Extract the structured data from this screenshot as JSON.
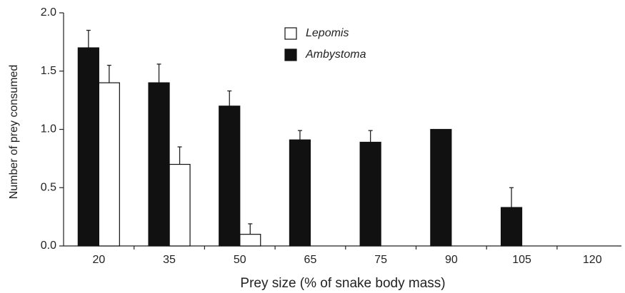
{
  "chart_data": {
    "type": "bar",
    "x_label": "Prey size (% of snake body mass)",
    "y_label": "Number of prey consumed",
    "categories": [
      "20",
      "35",
      "50",
      "65",
      "75",
      "90",
      "105",
      "120"
    ],
    "series": [
      {
        "name": "Lepomis",
        "color": "#ffffff",
        "values": [
          1.4,
          0.7,
          0.1,
          null,
          null,
          null,
          null,
          null
        ],
        "errors": [
          0.15,
          0.15,
          0.09,
          null,
          null,
          null,
          null,
          null
        ]
      },
      {
        "name": "Ambystoma",
        "color": "#111111",
        "values": [
          1.7,
          1.4,
          1.2,
          0.91,
          0.89,
          1.0,
          0.33,
          null
        ],
        "errors": [
          0.15,
          0.16,
          0.13,
          0.08,
          0.1,
          null,
          0.17,
          null
        ]
      }
    ],
    "ylim": [
      0,
      2.0
    ],
    "yticks": [
      {
        "value": 0,
        "label": "0.0"
      },
      {
        "value": 0.5,
        "label": "0.5"
      },
      {
        "value": 1.0,
        "label": "1.0"
      },
      {
        "value": 1.5,
        "label": "1.5"
      },
      {
        "value": 2.0,
        "label": "2.0"
      }
    ],
    "grid": false
  }
}
